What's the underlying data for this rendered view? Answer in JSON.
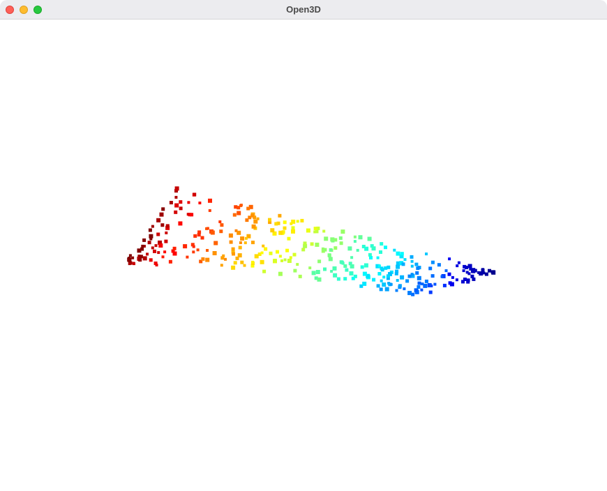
{
  "window": {
    "title": "Open3D",
    "buttons": {
      "close": "close-icon",
      "minimize": "minimize-icon",
      "zoom": "zoom-icon"
    },
    "colors": {
      "titlebar": "#ececef",
      "background": "#ffffff",
      "close": "#fe5f57",
      "minimize": "#febc2e",
      "zoom": "#28c840"
    }
  },
  "point_cloud": {
    "colormap": [
      "#7f0000",
      "#ff0000",
      "#ff7f00",
      "#ffff00",
      "#7fff7f",
      "#00ffff",
      "#007fff",
      "#0000ff",
      "#00007f"
    ],
    "point_count": 360,
    "seed": 7
  }
}
